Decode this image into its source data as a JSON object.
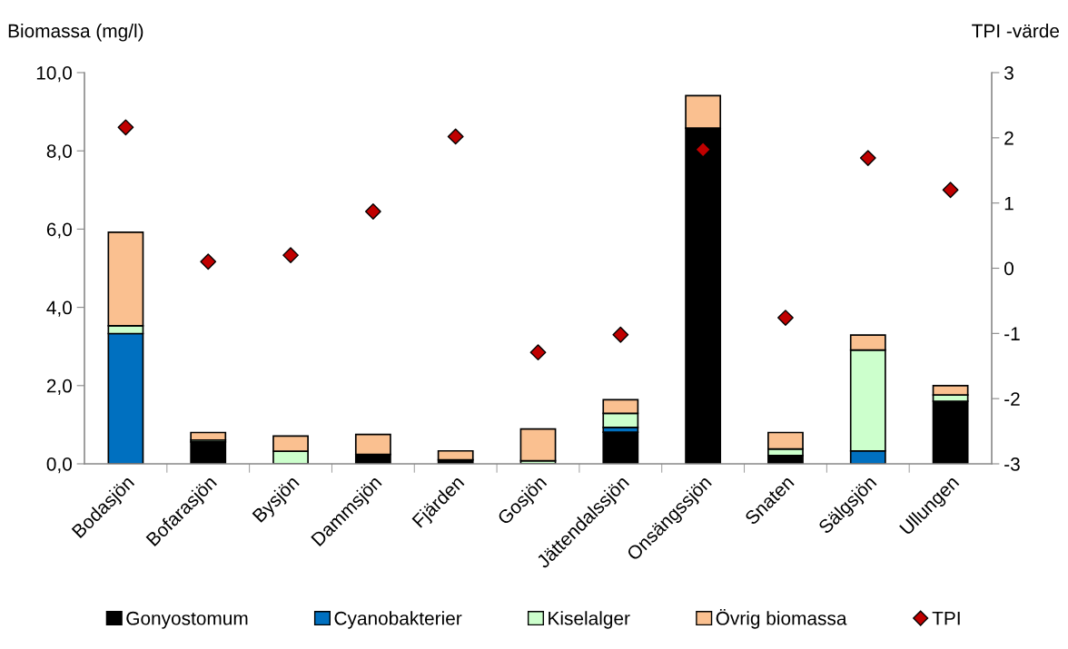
{
  "chart_data": {
    "type": "bar",
    "stacked": true,
    "ylabel": "Biomassa (mg/l)",
    "y2label": "TPI -värde",
    "categories": [
      "Bodasjön",
      "Bofarasjön",
      "Bysjön",
      "Dammsjön",
      "Fjärden",
      "Gosjön",
      "Jättendalssjön",
      "Onsängssjön",
      "Snaten",
      "Sälgsjön",
      "Ullungen"
    ],
    "series": [
      {
        "name": "Gonyostomum",
        "color": "#000000",
        "values": [
          0,
          0.56,
          0,
          0.24,
          0.1,
          0,
          0.81,
          8.58,
          0.21,
          0,
          1.6
        ]
      },
      {
        "name": "Cyanobakterier",
        "color": "#0070c0",
        "values": [
          3.33,
          0,
          0,
          0,
          0,
          0,
          0.12,
          0,
          0,
          0.33,
          0
        ]
      },
      {
        "name": "Kiselalger",
        "color": "#ccffcc",
        "values": [
          0.2,
          0.05,
          0.32,
          0,
          0,
          0.08,
          0.36,
          0,
          0.17,
          2.58,
          0.16
        ]
      },
      {
        "name": "Övrig biomassa",
        "color": "#fac090",
        "values": [
          2.39,
          0.19,
          0.39,
          0.51,
          0.23,
          0.81,
          0.35,
          0.83,
          0.42,
          0.38,
          0.24
        ]
      },
      {
        "name": "TPI",
        "type": "scatter",
        "axis": "y2",
        "color": "#c00000",
        "marker": "diamond",
        "values": [
          2.16,
          0.1,
          0.2,
          0.87,
          2.02,
          -1.29,
          -1.02,
          1.82,
          -0.76,
          1.69,
          1.2
        ]
      }
    ],
    "ylim": [
      0,
      10
    ],
    "yticks": [
      {
        "value": 0,
        "label": "0,0"
      },
      {
        "value": 2,
        "label": "2,0"
      },
      {
        "value": 4,
        "label": "4,0"
      },
      {
        "value": 6,
        "label": "6,0"
      },
      {
        "value": 8,
        "label": "8,0"
      },
      {
        "value": 10,
        "label": "10,0"
      }
    ],
    "y2lim": [
      -3,
      3
    ],
    "y2ticks": [
      -3,
      -2,
      -1,
      0,
      1,
      2,
      3
    ],
    "grid": false,
    "legend": "bottom"
  }
}
